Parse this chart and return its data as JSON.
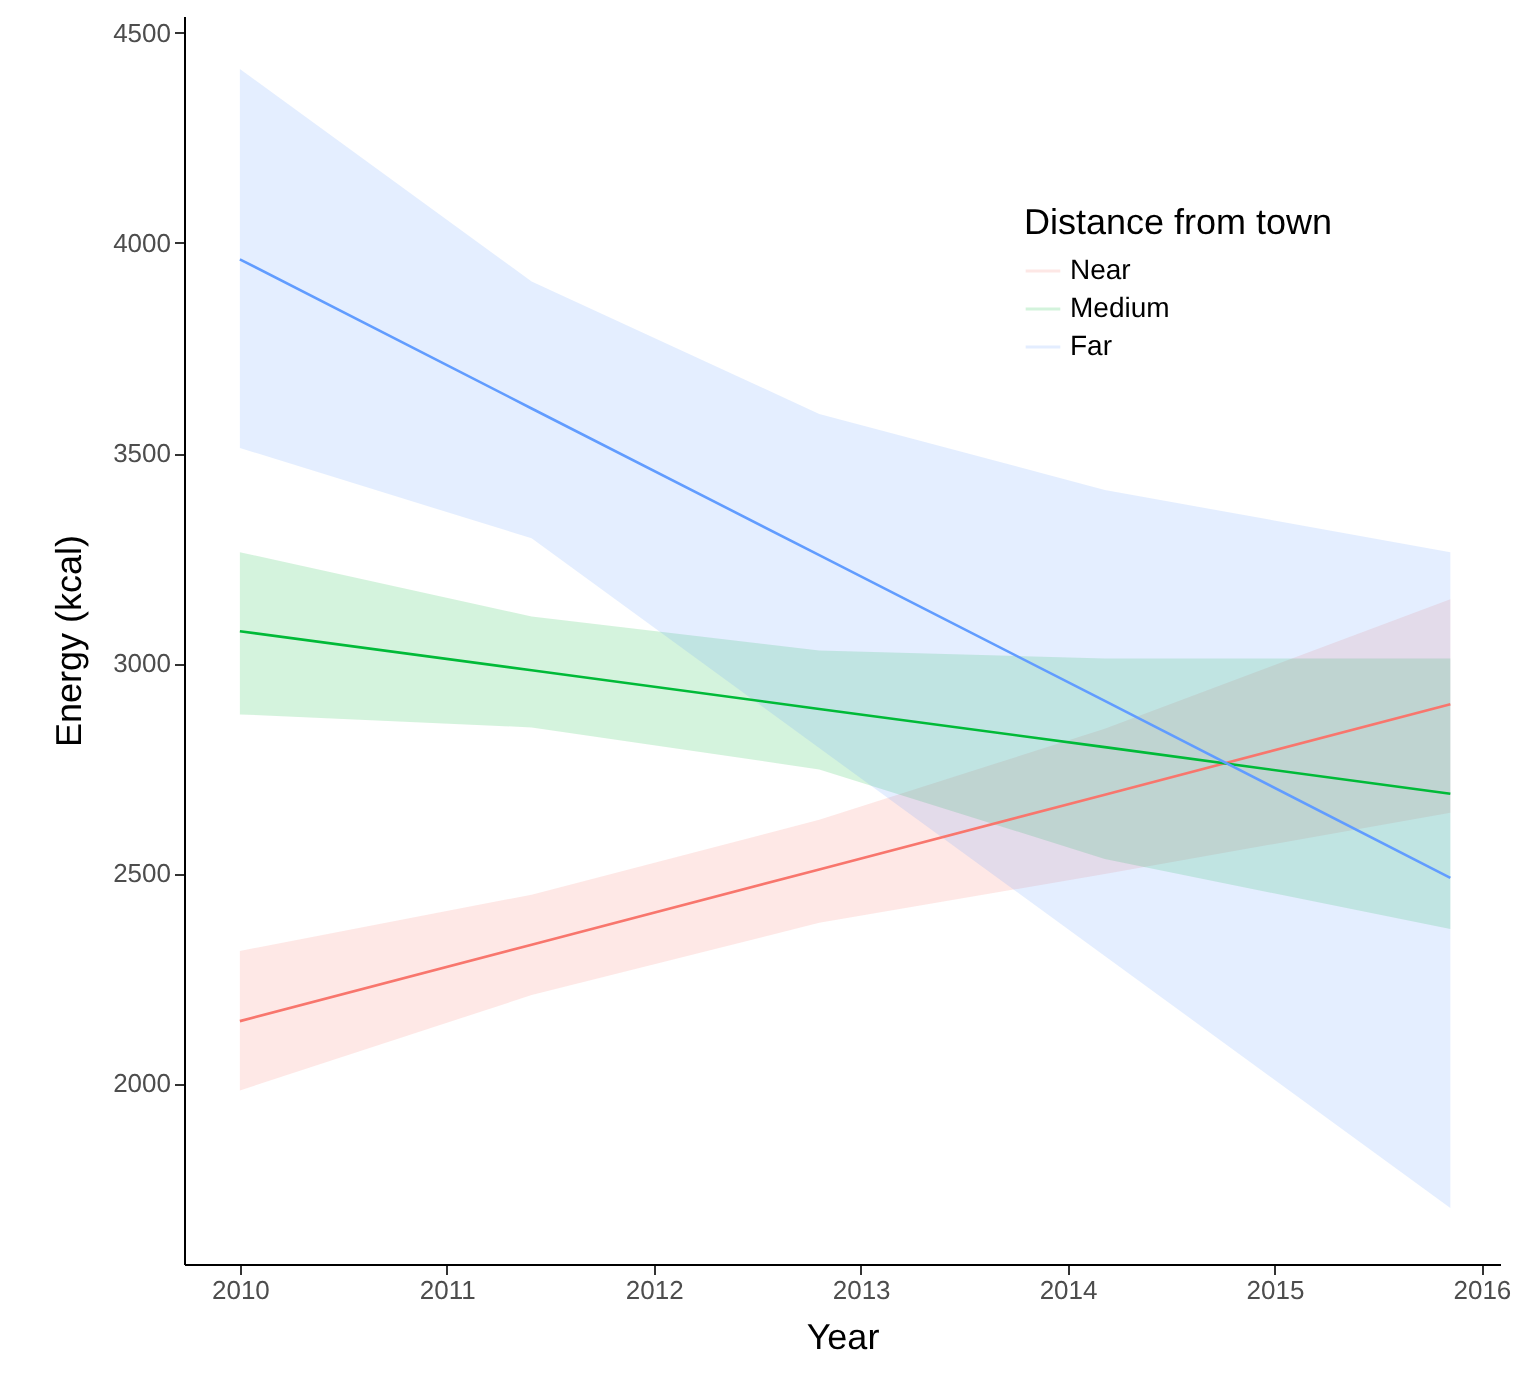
{
  "chart_data": {
    "type": "line",
    "xlabel": "Year",
    "ylabel": "Energy (kcal)",
    "legend_title": "Distance from town",
    "legend": "top right",
    "grid": false,
    "xlim": [
      2009.73,
      2016.09
    ],
    "xticks": [
      2010,
      2011,
      2012,
      2013,
      2014,
      2015,
      2016
    ],
    "ylim": [
      1570,
      4540
    ],
    "yticks": [
      2000,
      2500,
      3000,
      3500,
      4000,
      4500
    ],
    "series": [
      {
        "name": "Near",
        "color": "#f8766d",
        "x": [
          2010,
          2011.41,
          2012.8,
          2014.18,
          2015.85
        ],
        "values": [
          2148,
          2330,
          2509,
          2687,
          2902
        ],
        "lower": [
          1983,
          2210,
          2382,
          2498,
          2644
        ],
        "upper": [
          2315,
          2449,
          2627,
          2844,
          3152
        ]
      },
      {
        "name": "Medium",
        "color": "#00ba38",
        "x": [
          2010,
          2011.41,
          2012.8,
          2014.18,
          2015.85
        ],
        "values": [
          3076,
          2983,
          2891,
          2800,
          2689
        ],
        "lower": [
          2878,
          2847,
          2747,
          2534,
          2367
        ],
        "upper": [
          3264,
          3111,
          3030,
          3011,
          3011
        ]
      },
      {
        "name": "Far",
        "color": "#619cff",
        "x": [
          2010,
          2011.41,
          2012.8,
          2014.18,
          2015.85
        ],
        "values": [
          3961,
          3606,
          3257,
          2910,
          2489
        ],
        "lower": [
          3512,
          3297,
          2798,
          2303,
          1703
        ],
        "upper": [
          4414,
          3908,
          3593,
          3412,
          3264
        ]
      }
    ]
  }
}
